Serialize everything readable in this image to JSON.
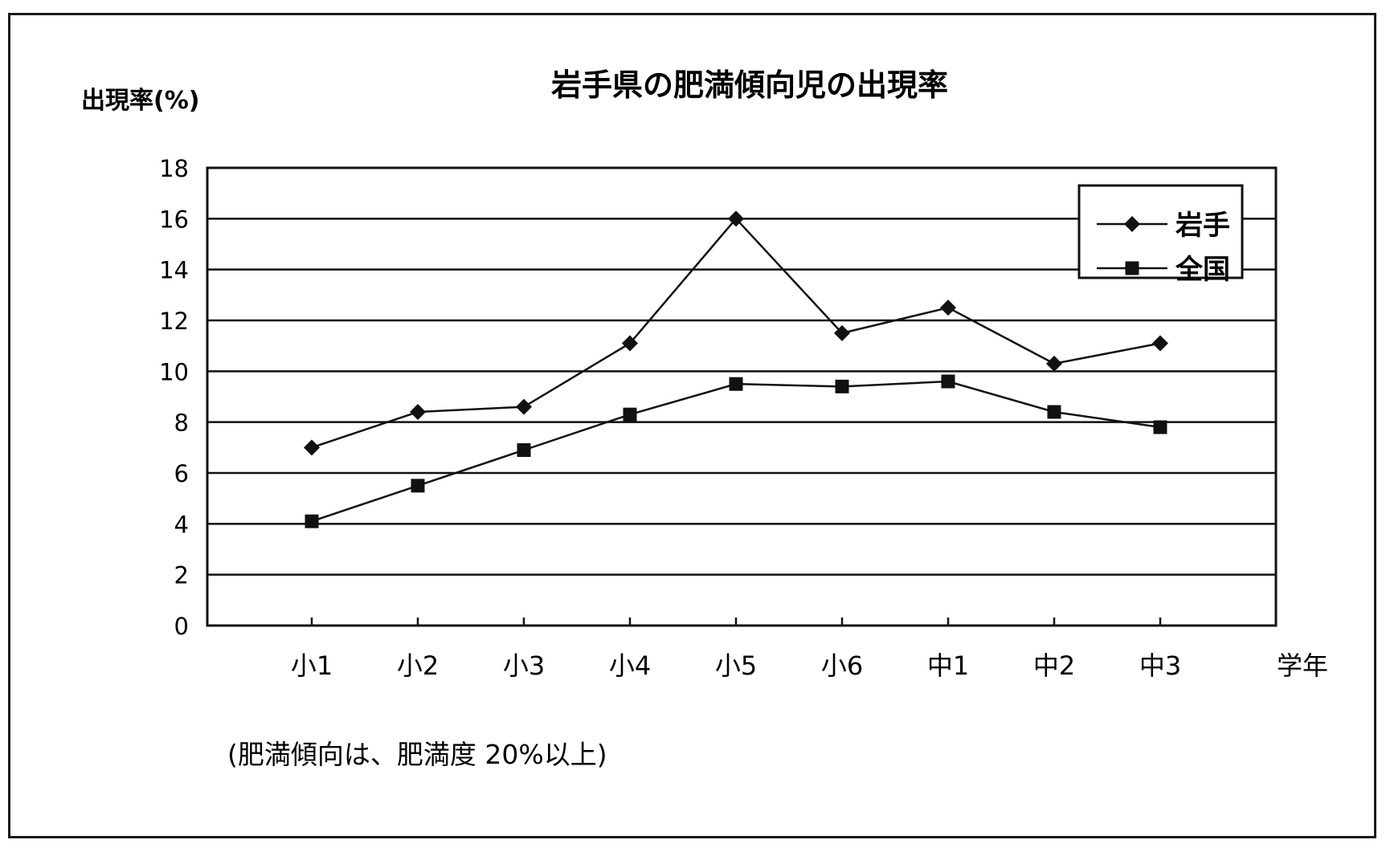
{
  "chart_data": {
    "type": "line",
    "title": "岩手県の肥満傾向児の出現率",
    "ylabel": "出現率(%)",
    "xlabel": "学年",
    "note": "(肥満傾向は、肥満度 20%以上)",
    "categories": [
      "小1",
      "小2",
      "小3",
      "小4",
      "小5",
      "小6",
      "中1",
      "中2",
      "中3"
    ],
    "ylim": [
      0,
      18
    ],
    "yticks": [
      0,
      2,
      4,
      6,
      8,
      10,
      12,
      14,
      16,
      18
    ],
    "grid": true,
    "legend_position": "top-right",
    "series": [
      {
        "name": "岩手",
        "marker": "diamond",
        "color": "#111111",
        "values": [
          7.0,
          8.4,
          8.6,
          11.1,
          16.0,
          11.5,
          12.5,
          10.3,
          11.1
        ]
      },
      {
        "name": "全国",
        "marker": "square",
        "color": "#111111",
        "values": [
          4.1,
          5.5,
          6.9,
          8.3,
          9.5,
          9.4,
          9.6,
          8.4,
          7.8
        ]
      }
    ]
  }
}
